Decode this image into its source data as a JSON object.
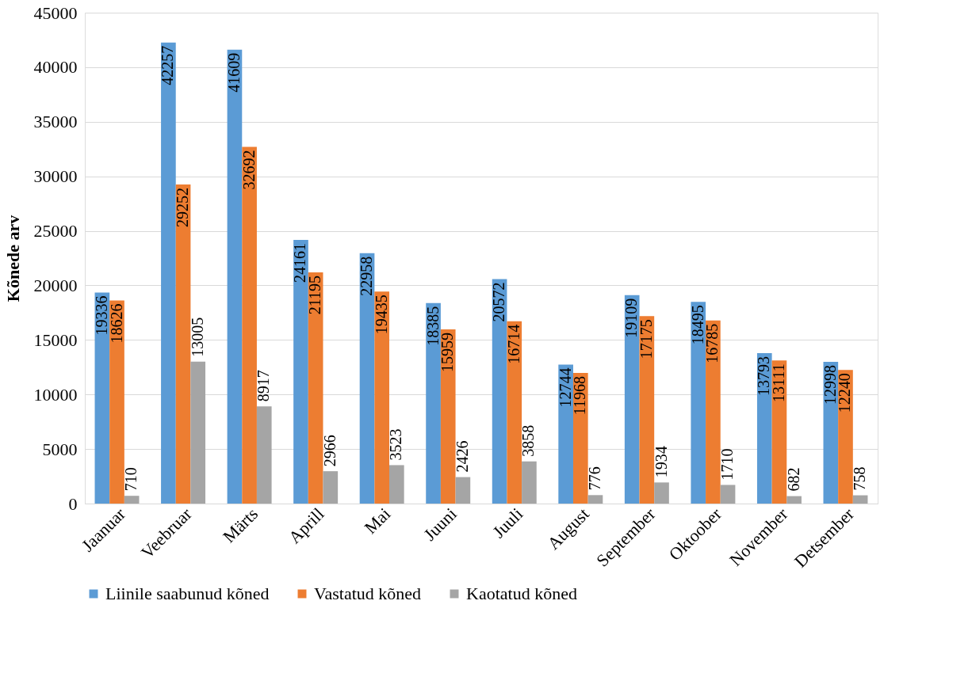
{
  "chart_data": {
    "type": "bar",
    "ylabel": "Kõnede arv",
    "categories": [
      "Jaanuar",
      "Veebruar",
      "Märts",
      "Aprill",
      "Mai",
      "Juuni",
      "Juuli",
      "August",
      "September",
      "Oktoober",
      "November",
      "Detsember"
    ],
    "series": [
      {
        "name": "Liinile saabunud kõned",
        "color": "#5b9bd5",
        "values": [
          19336,
          42257,
          41609,
          24161,
          22958,
          18385,
          20572,
          12744,
          19109,
          18495,
          13793,
          12998
        ]
      },
      {
        "name": "Vastatud kõned",
        "color": "#ed7d31",
        "values": [
          18626,
          29252,
          32692,
          21195,
          19435,
          15959,
          16714,
          11968,
          17175,
          16785,
          13111,
          12240
        ]
      },
      {
        "name": "Kaotatud kõned",
        "color": "#a5a5a5",
        "values": [
          710,
          13005,
          8917,
          2966,
          3523,
          2426,
          3858,
          776,
          1934,
          1710,
          682,
          758
        ]
      }
    ],
    "ylim": [
      0,
      45000
    ],
    "yticks": [
      0,
      5000,
      10000,
      15000,
      20000,
      25000,
      30000,
      35000,
      40000,
      45000
    ],
    "grid": "y",
    "legend": "bottom",
    "data_labels": true
  }
}
